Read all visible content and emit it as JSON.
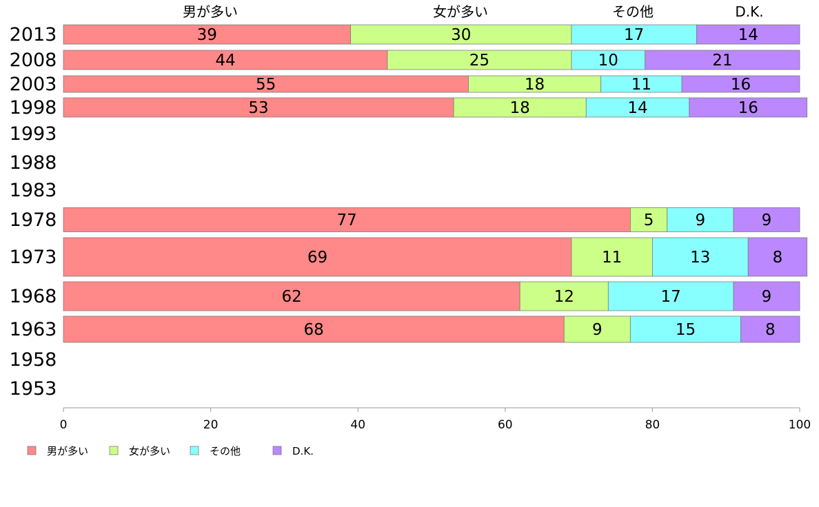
{
  "chart_data": {
    "type": "bar",
    "orientation": "horizontal",
    "stacked": true,
    "series": [
      {
        "name": "男が多い",
        "color": "#ff8888"
      },
      {
        "name": "女が多い",
        "color": "#ccff88"
      },
      {
        "name": "その他",
        "color": "#88ffff"
      },
      {
        "name": "D.K.",
        "color": "#bb88ff"
      }
    ],
    "header_labels": [
      "男が多い",
      "女が多い",
      "その他",
      "D.K."
    ],
    "rows": [
      {
        "year": "2013",
        "values": [
          39,
          30,
          17,
          14
        ]
      },
      {
        "year": "2008",
        "values": [
          44,
          25,
          10,
          21
        ]
      },
      {
        "year": "2003",
        "values": [
          55,
          18,
          11,
          16
        ]
      },
      {
        "year": "1998",
        "values": [
          53,
          18,
          14,
          16
        ]
      },
      {
        "year": "1993",
        "values": null
      },
      {
        "year": "1988",
        "values": null
      },
      {
        "year": "1983",
        "values": null
      },
      {
        "year": "1978",
        "values": [
          77,
          5,
          9,
          9
        ]
      },
      {
        "year": "1973",
        "values": [
          69,
          11,
          13,
          8
        ]
      },
      {
        "year": "1968",
        "values": [
          62,
          12,
          17,
          9
        ]
      },
      {
        "year": "1963",
        "values": [
          68,
          9,
          15,
          8
        ]
      },
      {
        "year": "1958",
        "values": null
      },
      {
        "year": "1953",
        "values": null
      }
    ],
    "xlim": [
      0,
      100
    ],
    "xticks": [
      "0",
      "20",
      "40",
      "60",
      "80",
      "100"
    ],
    "grid": false,
    "legend_position": "bottom-left"
  }
}
